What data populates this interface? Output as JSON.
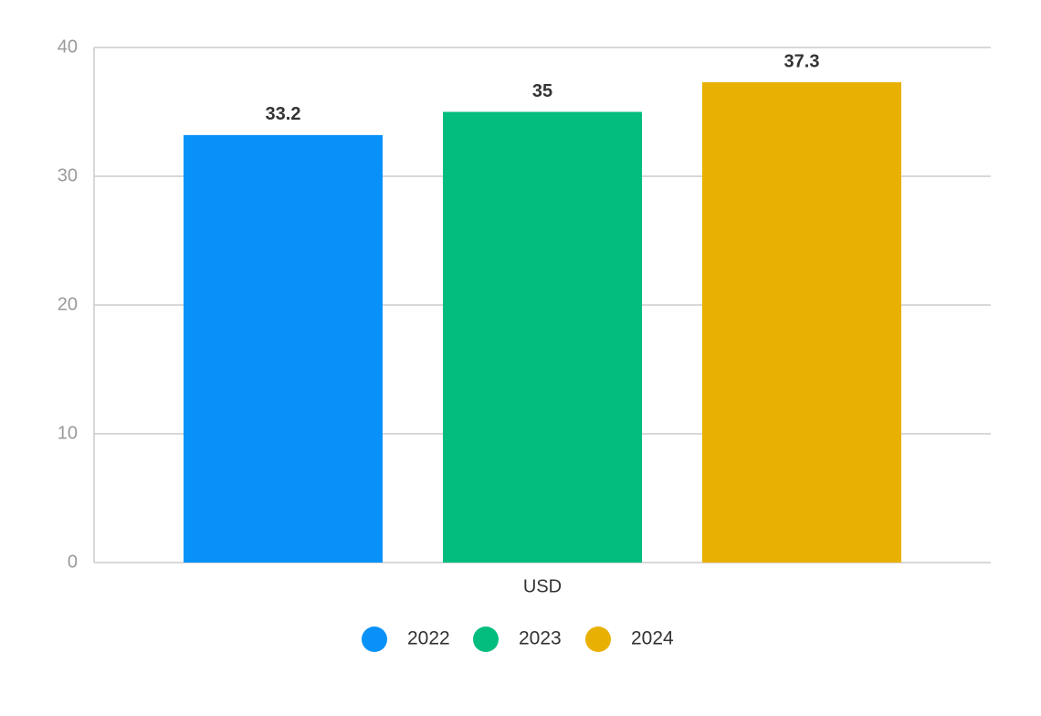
{
  "chart_data": {
    "type": "bar",
    "categories": [
      "USD"
    ],
    "series": [
      {
        "name": "2022",
        "color": "#0892f9",
        "values": [
          33.2
        ]
      },
      {
        "name": "2023",
        "color": "#02bd7e",
        "values": [
          35
        ]
      },
      {
        "name": "2024",
        "color": "#e9b004",
        "values": [
          37.3
        ]
      }
    ],
    "ylim": [
      0,
      40
    ],
    "yticks": [
      0,
      10,
      20,
      30,
      40
    ],
    "grid": true,
    "legend": "bottom"
  }
}
